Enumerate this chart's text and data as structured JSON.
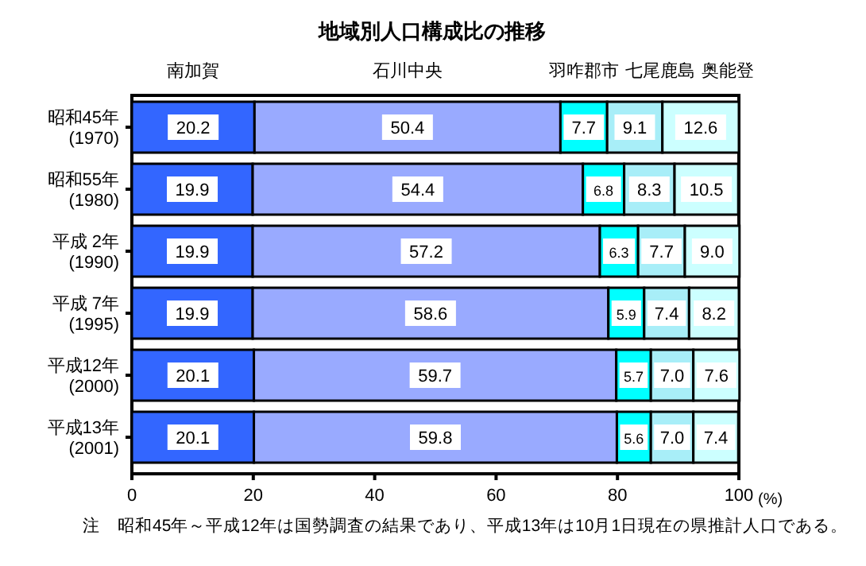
{
  "chart_data": {
    "type": "bar",
    "orientation": "horizontal",
    "stacked": true,
    "title": "地域別人口構成比の推移",
    "xlabel": "(%)",
    "legend": "top",
    "categories": [
      "昭和45年\n(1970)",
      "昭和55年\n(1980)",
      "平成 2年\n(1990)",
      "平成 7年\n(1995)",
      "平成12年\n(2000)",
      "平成13年\n(2001)"
    ],
    "xlim": [
      0,
      100
    ],
    "xticks": [
      0,
      20,
      40,
      60,
      80,
      100
    ],
    "series": [
      {
        "name": "南加賀",
        "color": "#3366ff",
        "values": [
          20.2,
          19.9,
          19.9,
          19.9,
          20.1,
          20.1
        ],
        "value_labels": [
          "20.2",
          "19.9",
          "19.9",
          "19.9",
          "20.1",
          "20.1"
        ]
      },
      {
        "name": "石川中央",
        "color": "#99aaff",
        "values": [
          50.4,
          54.4,
          57.2,
          58.6,
          59.7,
          59.8
        ],
        "value_labels": [
          "50.4",
          "54.4",
          "57.2",
          "58.6",
          "59.7",
          "59.8"
        ]
      },
      {
        "name": "羽咋郡市",
        "color": "#00ffff",
        "values": [
          7.7,
          6.8,
          6.3,
          5.9,
          5.7,
          5.6
        ],
        "value_labels": [
          "7.7",
          "6.8",
          "6.3",
          "5.9",
          "5.7",
          "5.6"
        ]
      },
      {
        "name": "七尾鹿島",
        "color": "#a8eef8",
        "values": [
          9.1,
          8.3,
          7.7,
          7.4,
          7.0,
          7.0
        ],
        "value_labels": [
          "9.1",
          "8.3",
          "7.7",
          "7.4",
          "7.0",
          "7.0"
        ]
      },
      {
        "name": "奥能登",
        "color": "#ccffff",
        "values": [
          12.6,
          10.5,
          9.0,
          8.2,
          7.6,
          7.4
        ],
        "value_labels": [
          "12.6",
          "10.5",
          "9.0",
          "8.2",
          "7.6",
          "7.4"
        ]
      }
    ],
    "annotations": [
      "注　昭和45年～平成12年は国勢調査の結果であり、平成13年は10月1日現在の県推計人口である。"
    ]
  }
}
